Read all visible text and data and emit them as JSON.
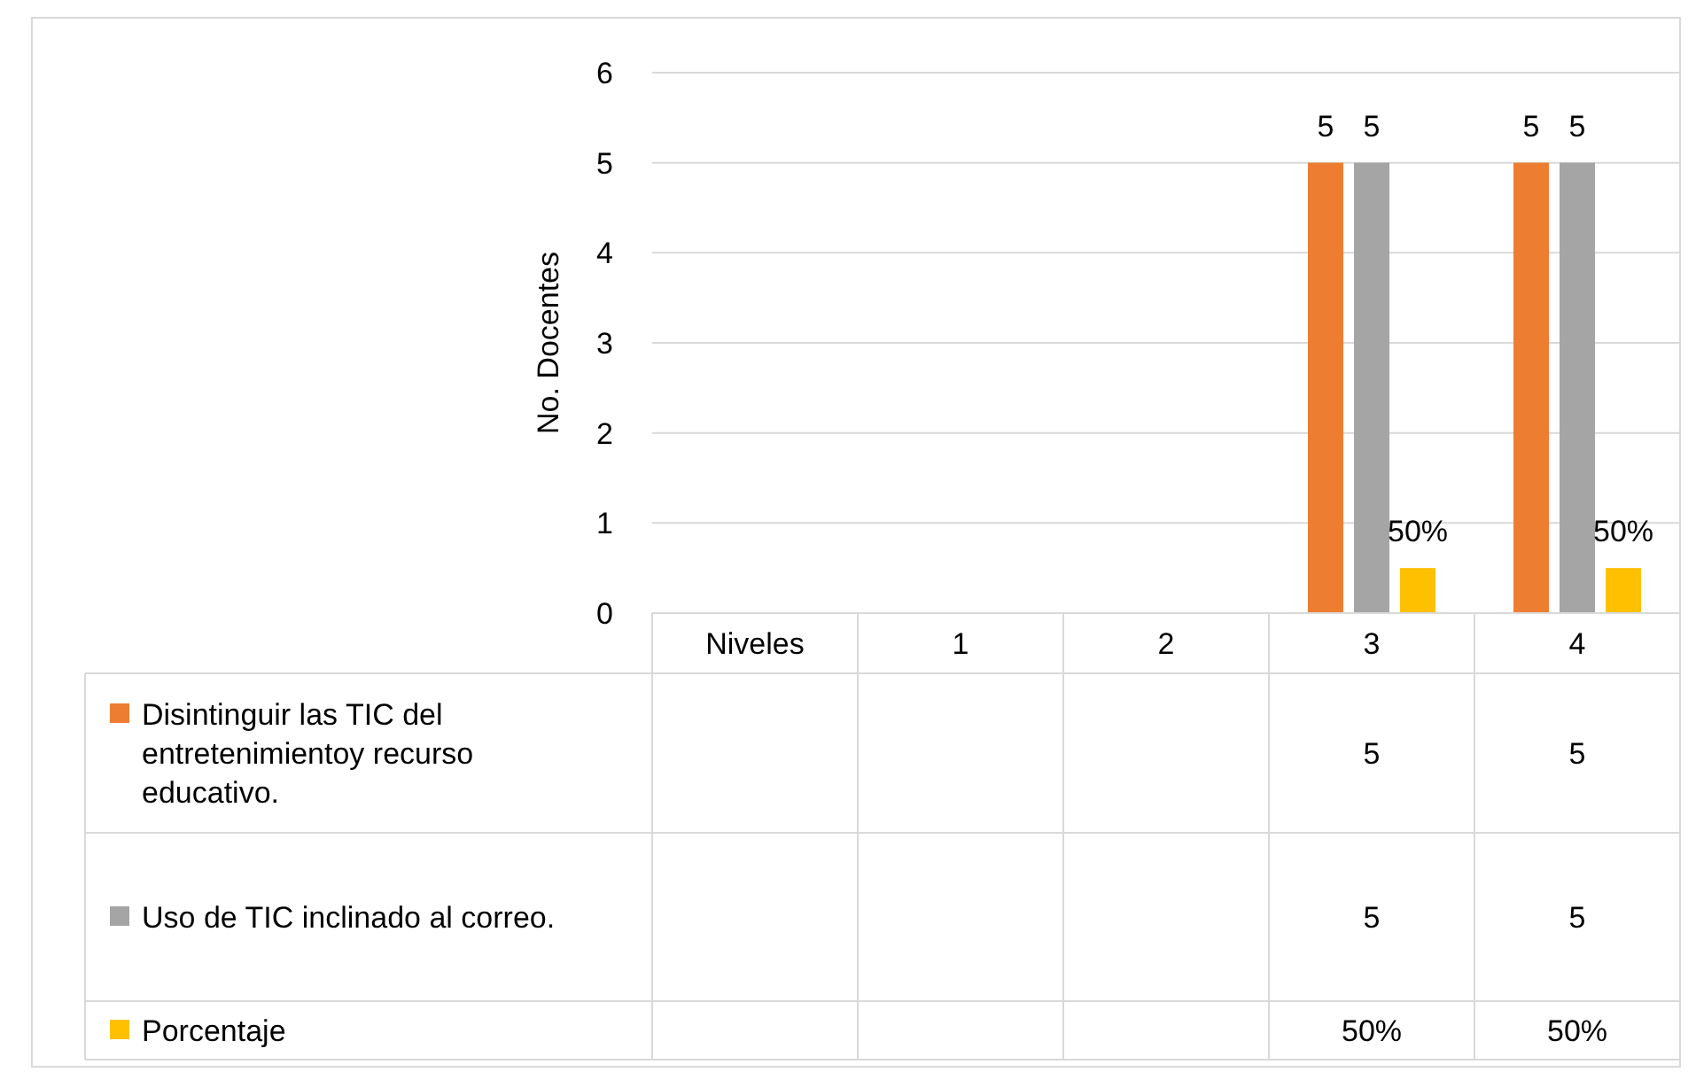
{
  "chart_data": {
    "type": "bar",
    "ylabel": "No. Docentes",
    "categories": [
      "Niveles",
      "1",
      "2",
      "3",
      "4"
    ],
    "series": [
      {
        "name": "Disintinguir las TIC del entretenimientoy recurso educativo.",
        "color": "#ed7d31",
        "values": [
          null,
          null,
          null,
          5,
          5
        ],
        "value_labels": [
          null,
          null,
          null,
          "5",
          "5"
        ]
      },
      {
        "name": "Uso de TIC inclinado al correo.",
        "color": "#a5a5a5",
        "values": [
          null,
          null,
          null,
          5,
          5
        ],
        "value_labels": [
          null,
          null,
          null,
          "5",
          "5"
        ]
      },
      {
        "name": "Porcentaje",
        "color": "#ffc000",
        "values": [
          null,
          null,
          null,
          0.5,
          0.5
        ],
        "value_labels": [
          null,
          null,
          null,
          "50%",
          "50%"
        ]
      }
    ],
    "ylim": [
      0,
      6
    ],
    "yticks": [
      0,
      1,
      2,
      3,
      4,
      5,
      6
    ],
    "grid": "y",
    "legend": "bottom"
  }
}
